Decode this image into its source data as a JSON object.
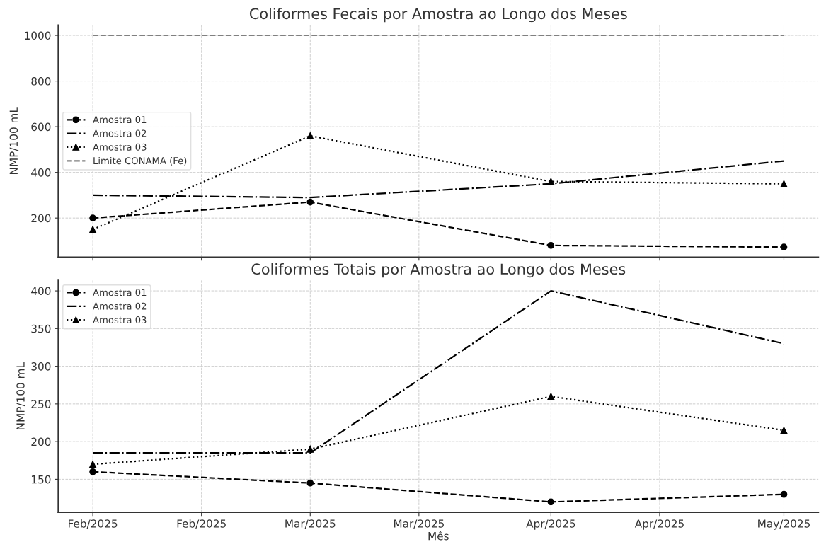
{
  "chart_data": [
    {
      "type": "line",
      "title": "Coliformes Fecais por Amostra ao Longo dos Meses",
      "ylabel": "NMP/100 mL",
      "x": [
        "2025-02-01",
        "2025-03-01",
        "2025-04-01",
        "2025-05-01"
      ],
      "series": [
        {
          "name": "Amostra 01",
          "color": "#000000",
          "line_style": "dashed",
          "marker": "circle",
          "values": [
            200,
            270,
            80,
            73
          ]
        },
        {
          "name": "Amostra 02",
          "color": "#000000",
          "line_style": "dashdot",
          "marker": "none",
          "values": [
            300,
            290,
            350,
            450
          ]
        },
        {
          "name": "Amostra 03",
          "color": "#000000",
          "line_style": "dotted",
          "marker": "triangle",
          "values": [
            150,
            560,
            360,
            350
          ]
        },
        {
          "name": "Limite CONAMA (Fe)",
          "color": "#808080",
          "line_style": "dashed",
          "marker": "none",
          "x": [
            "2025-02-01",
            "2025-05-01"
          ],
          "values": [
            1000,
            1000
          ]
        }
      ],
      "xlim": [
        "2025-01-27T13:00",
        "2025-05-05T11:00"
      ],
      "xticks": [
        {
          "value": "2025-02-01",
          "label": null
        },
        {
          "value": "2025-02-15",
          "label": null
        },
        {
          "value": "2025-03-01",
          "label": null
        },
        {
          "value": "2025-03-15",
          "label": null
        },
        {
          "value": "2025-04-01",
          "label": null
        },
        {
          "value": "2025-04-15",
          "label": null
        },
        {
          "value": "2025-05-01",
          "label": null
        }
      ],
      "ylim": [
        29,
        1046
      ],
      "yticks": [
        200,
        400,
        600,
        800,
        1000
      ],
      "tick_labels": "y",
      "grid": true,
      "legend": "center left"
    },
    {
      "type": "line",
      "title": "Coliformes Totais por Amostra ao Longo dos Meses",
      "xlabel": "Mês",
      "ylabel": "NMP/100 mL",
      "x": [
        "2025-02-01",
        "2025-03-01",
        "2025-04-01",
        "2025-05-01"
      ],
      "series": [
        {
          "name": "Amostra 01",
          "color": "#000000",
          "line_style": "dashed",
          "marker": "circle",
          "values": [
            160,
            145,
            120,
            130
          ]
        },
        {
          "name": "Amostra 02",
          "color": "#000000",
          "line_style": "dashdot",
          "marker": "none",
          "values": [
            185,
            185,
            400,
            330
          ]
        },
        {
          "name": "Amostra 03",
          "color": "#000000",
          "line_style": "dotted",
          "marker": "triangle",
          "values": [
            170,
            190,
            260,
            215
          ]
        }
      ],
      "xlim": [
        "2025-01-27T13:00",
        "2025-05-05T11:00"
      ],
      "xticks": [
        {
          "value": "2025-02-01",
          "label": "Feb/2025"
        },
        {
          "value": "2025-02-15",
          "label": "Feb/2025"
        },
        {
          "value": "2025-03-01",
          "label": "Mar/2025"
        },
        {
          "value": "2025-03-15",
          "label": "Mar/2025"
        },
        {
          "value": "2025-04-01",
          "label": "Apr/2025"
        },
        {
          "value": "2025-04-15",
          "label": "Apr/2025"
        },
        {
          "value": "2025-05-01",
          "label": "May/2025"
        }
      ],
      "ylim": [
        106,
        414
      ],
      "yticks": [
        150,
        200,
        250,
        300,
        350,
        400
      ],
      "grid": true,
      "legend": "top left"
    }
  ]
}
